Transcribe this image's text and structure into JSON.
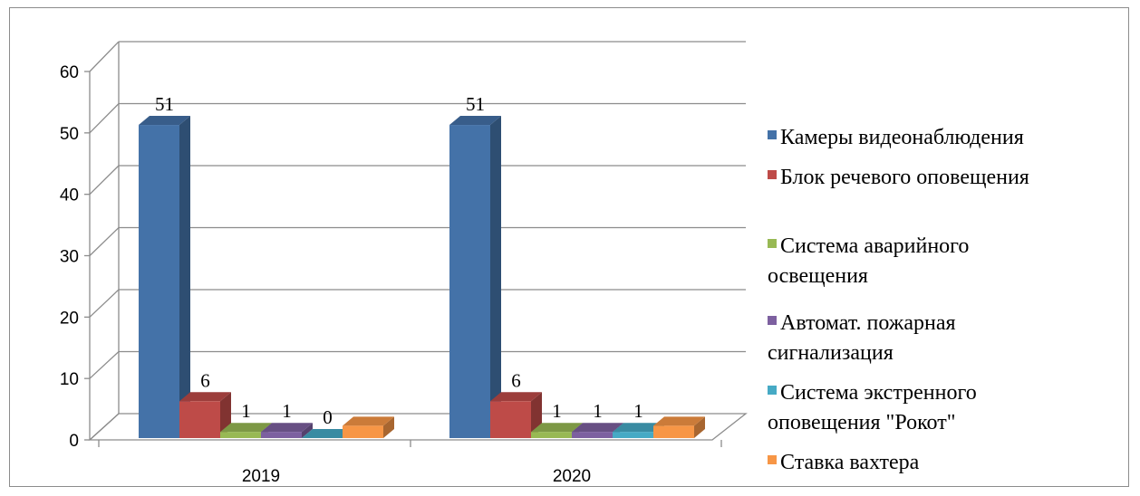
{
  "chart_data": {
    "type": "bar",
    "title": "",
    "xlabel": "",
    "ylabel": "",
    "ylim": [
      0,
      60
    ],
    "yticks": [
      0,
      10,
      20,
      30,
      40,
      50,
      60
    ],
    "categories": [
      "2019",
      "2020"
    ],
    "grid": true,
    "legend_position": "right",
    "three_d": true,
    "series": [
      {
        "name": "Камеры видеонаблюдения",
        "values": [
          51,
          51
        ],
        "labels": [
          "51",
          "51"
        ],
        "color": "#4472a8"
      },
      {
        "name": "Блок речевого оповещения",
        "values": [
          6,
          6
        ],
        "labels": [
          "6",
          "6"
        ],
        "color": "#be4b48"
      },
      {
        "name": "Система аварийного освещения",
        "values": [
          1,
          1
        ],
        "labels": [
          "1",
          "1"
        ],
        "color": "#98b954"
      },
      {
        "name": "Автомат. пожарная сигнализация",
        "values": [
          1,
          1
        ],
        "labels": [
          "1",
          "1"
        ],
        "color": "#7d60a0"
      },
      {
        "name": "Система экстренного оповещения \"Рокот\"",
        "values": [
          0,
          1
        ],
        "labels": [
          "0",
          "1"
        ],
        "color": "#46aac5"
      },
      {
        "name": "Ставка вахтера",
        "values": [
          2,
          2
        ],
        "labels": [
          "",
          ""
        ],
        "color": "#f79646"
      }
    ]
  }
}
